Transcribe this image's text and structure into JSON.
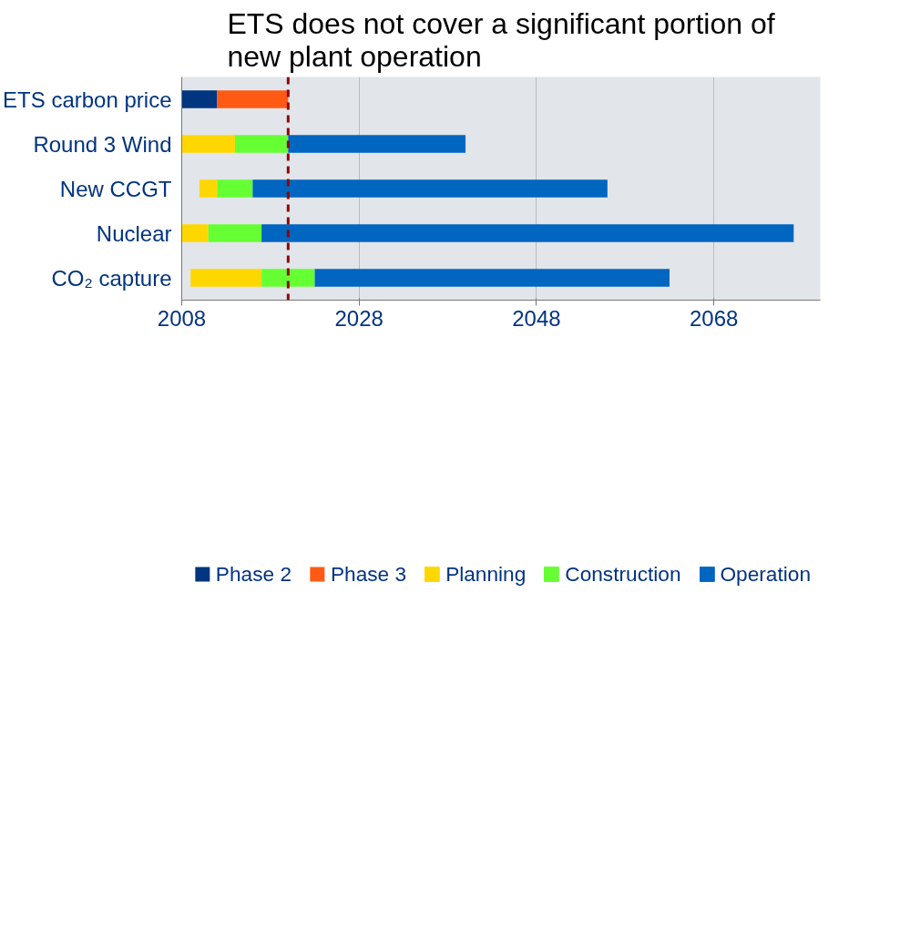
{
  "chart_data": {
    "type": "bar",
    "orientation": "horizontal",
    "title": "ETS does not cover a significant portion of new plant operation",
    "categories": [
      "ETS carbon price",
      "Round 3 Wind",
      "New CCGT",
      "Nuclear",
      "CO₂ capture"
    ],
    "series": [
      {
        "name": "Phase 2",
        "color": "#003580",
        "base": [
          2008,
          null,
          null,
          null,
          null
        ],
        "values": [
          4,
          null,
          null,
          null,
          null
        ]
      },
      {
        "name": "Phase 3",
        "color": "#ff5a14",
        "base": [
          2012,
          null,
          null,
          null,
          null
        ],
        "values": [
          8,
          null,
          null,
          null,
          null
        ]
      },
      {
        "name": "Planning",
        "color": "#ffd700",
        "base": [
          null,
          2008,
          2010,
          2008,
          2009
        ],
        "values": [
          null,
          6,
          2,
          3,
          8
        ]
      },
      {
        "name": "Construction",
        "color": "#66ff33",
        "base": [
          null,
          2014,
          2012,
          2011,
          2017
        ],
        "values": [
          null,
          6,
          4,
          6,
          6
        ]
      },
      {
        "name": "Operation",
        "color": "#0066c0",
        "base": [
          null,
          2020,
          2016,
          2017,
          2023
        ],
        "values": [
          null,
          20,
          40,
          60,
          40
        ]
      }
    ],
    "xlim": [
      2008,
      2080
    ],
    "xticks": [
      2008,
      2028,
      2048,
      2068
    ],
    "ref_lines": [
      {
        "axis": "x",
        "value": 2020,
        "color": "#990000",
        "line_style": "dashed"
      }
    ],
    "grid": "x",
    "legend": "bottom"
  }
}
